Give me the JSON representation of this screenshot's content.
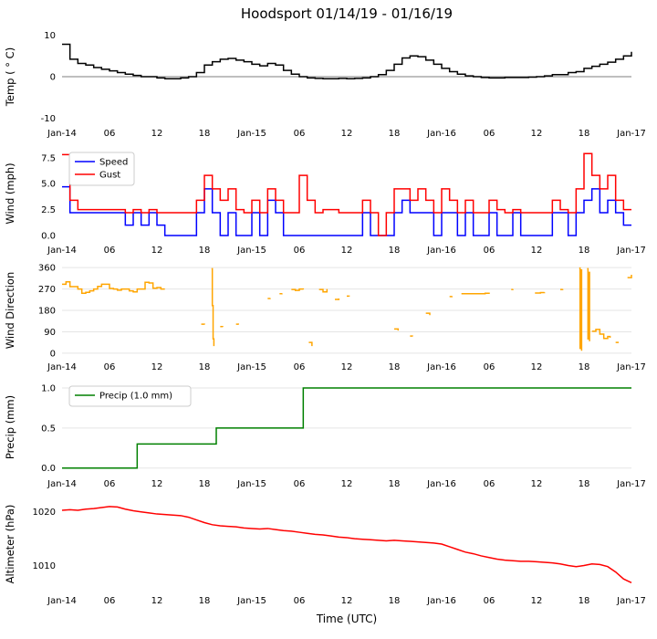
{
  "title": "Hoodsport 01/14/19 - 01/16/19",
  "xlabel": "Time (UTC)",
  "x_axis": {
    "range": [
      0,
      72
    ],
    "ticks": [
      0,
      6,
      12,
      18,
      24,
      30,
      36,
      42,
      48,
      54,
      60,
      66,
      72
    ],
    "labels": [
      "Jan-14",
      "06",
      "12",
      "18",
      "Jan-15",
      "06",
      "12",
      "18",
      "Jan-16",
      "06",
      "12",
      "18",
      "Jan-17"
    ]
  },
  "colors": {
    "temp": "#000000",
    "speed": "#0000ff",
    "gust": "#ff0000",
    "wind_direction": "#ffa500",
    "precip": "#008000",
    "altimeter": "#ff0000",
    "grid": "#e5e5e5",
    "zero_line": "#555555",
    "legend_border": "#cccccc"
  },
  "chart_data": [
    {
      "id": "temp",
      "type": "line",
      "ylabel": "Temp ( ° C)",
      "ylim": [
        -11,
        11
      ],
      "yticks": [
        -10,
        0,
        10
      ],
      "ytick_labels": [
        "-10",
        "0",
        "10"
      ],
      "zero_line": true,
      "series": [
        {
          "name": "Temp",
          "color": "#000000",
          "step": true,
          "x0": 0,
          "dx": 1,
          "y": [
            7.8,
            4.2,
            3.2,
            2.8,
            2.2,
            1.8,
            1.4,
            1.0,
            0.6,
            0.3,
            0,
            0,
            -0.3,
            -0.5,
            -0.5,
            -0.3,
            0,
            1.0,
            2.8,
            3.6,
            4.2,
            4.4,
            4.0,
            3.6,
            3.0,
            2.6,
            3.2,
            2.8,
            1.5,
            0.6,
            0,
            -0.3,
            -0.4,
            -0.5,
            -0.5,
            -0.4,
            -0.5,
            -0.4,
            -0.3,
            0,
            0.5,
            1.5,
            3.0,
            4.5,
            5.0,
            4.8,
            4.0,
            3.0,
            2.0,
            1.2,
            0.6,
            0.2,
            0,
            -0.2,
            -0.3,
            -0.3,
            -0.2,
            -0.2,
            -0.2,
            -0.1,
            0,
            0.2,
            0.5,
            0.5,
            1.0,
            1.2,
            2.0,
            2.5,
            3.0,
            3.5,
            4.2,
            5.0,
            6.0
          ]
        }
      ]
    },
    {
      "id": "wind",
      "type": "line",
      "ylabel": "Wind (mph)",
      "ylim": [
        -0.35,
        8.45
      ],
      "yticks": [
        0.0,
        2.5,
        5.0,
        7.5
      ],
      "ytick_labels": [
        "0.0",
        "2.5",
        "5.0",
        "7.5"
      ],
      "legend": true,
      "series": [
        {
          "name": "Speed",
          "color": "#0000ff",
          "step": true,
          "x0": 0,
          "dx": 1,
          "y": [
            4.7,
            2.2,
            2.2,
            2.2,
            2.2,
            2.2,
            2.2,
            2.2,
            1.0,
            2.2,
            1.0,
            2.2,
            1.0,
            0,
            0,
            0,
            0,
            2.2,
            4.5,
            2.2,
            0,
            2.2,
            0,
            0,
            2.2,
            0,
            3.4,
            2.2,
            0,
            0,
            0,
            0,
            0,
            0,
            0,
            0,
            0,
            0,
            2.2,
            0,
            0,
            0,
            2.2,
            3.4,
            2.2,
            2.2,
            2.2,
            0,
            2.2,
            2.2,
            0,
            2.2,
            0,
            0,
            2.2,
            0,
            0,
            2.2,
            0,
            0,
            0,
            0,
            2.2,
            2.2,
            0,
            2.2,
            3.4,
            4.5,
            2.2,
            3.4,
            2.2,
            1.0,
            1.0
          ]
        },
        {
          "name": "Gust",
          "color": "#ff0000",
          "step": true,
          "x0": 0,
          "dx": 1,
          "y": [
            7.8,
            3.4,
            2.5,
            2.5,
            2.5,
            2.5,
            2.5,
            2.5,
            2.2,
            2.5,
            2.2,
            2.5,
            2.2,
            2.2,
            2.2,
            2.2,
            2.2,
            3.4,
            5.8,
            4.5,
            3.4,
            4.5,
            2.5,
            2.2,
            3.4,
            2.2,
            4.5,
            3.4,
            2.2,
            2.2,
            5.8,
            3.4,
            2.2,
            2.5,
            2.5,
            2.2,
            2.2,
            2.2,
            3.4,
            2.2,
            0,
            2.2,
            4.5,
            4.5,
            3.4,
            4.5,
            3.4,
            2.2,
            4.5,
            3.4,
            2.2,
            3.4,
            2.2,
            2.2,
            3.4,
            2.5,
            2.2,
            2.5,
            2.2,
            2.2,
            2.2,
            2.2,
            3.4,
            2.5,
            2.2,
            4.5,
            7.9,
            5.8,
            4.5,
            5.8,
            3.4,
            2.5,
            2.5
          ]
        }
      ]
    },
    {
      "id": "wind-direction",
      "type": "line",
      "ylabel": "Wind Direction",
      "ylim": [
        -12,
        372
      ],
      "yticks": [
        0,
        90,
        180,
        270,
        360
      ],
      "ytick_labels": [
        "0",
        "90",
        "180",
        "270",
        "360"
      ],
      "grid": true,
      "series": [
        {
          "name": "Wind Direction",
          "color": "#ffa500",
          "step": true,
          "points": [
            [
              0,
              290
            ],
            [
              0.5,
              300
            ],
            [
              1,
              280
            ],
            [
              1.5,
              280
            ],
            [
              2,
              270
            ],
            [
              2.5,
              252
            ],
            [
              3,
              256
            ],
            [
              3.5,
              262
            ],
            [
              4,
              270
            ],
            [
              4.5,
              281
            ],
            [
              5,
              290
            ],
            [
              5.5,
              290
            ],
            [
              6,
              272
            ],
            [
              6.5,
              270
            ],
            [
              7,
              265
            ],
            [
              7.5,
              270
            ],
            [
              8,
              270
            ],
            [
              8.5,
              262
            ],
            [
              9,
              258
            ],
            [
              9.5,
              270
            ],
            [
              10,
              270
            ],
            [
              10.5,
              298
            ],
            [
              11,
              295
            ],
            [
              11.5,
              273
            ],
            [
              12,
              276
            ],
            [
              12.5,
              270
            ],
            [
              13,
              270
            ],
            null,
            [
              17.6,
              122
            ],
            [
              18,
              120
            ],
            null,
            [
              18.9,
              355
            ],
            [
              19,
              200
            ],
            [
              19.1,
              60
            ],
            [
              19.2,
              30
            ],
            null,
            [
              20,
              112
            ],
            [
              20.3,
              110
            ],
            null,
            [
              22,
              122
            ],
            [
              22.3,
              120
            ],
            null,
            [
              26,
              230
            ],
            [
              26.3,
              232
            ],
            null,
            [
              27.5,
              250
            ],
            [
              27.8,
              252
            ],
            null,
            [
              29,
              268
            ],
            [
              29.5,
              264
            ],
            [
              30,
              270
            ],
            [
              30.5,
              268
            ],
            null,
            [
              31.2,
              45
            ],
            [
              31.6,
              30
            ],
            null,
            [
              32.5,
              268
            ],
            [
              33,
              258
            ],
            [
              33.5,
              270
            ],
            null,
            [
              34.5,
              226
            ],
            [
              35,
              230
            ],
            null,
            [
              36,
              240
            ],
            [
              36.3,
              238
            ],
            null,
            [
              42,
              102
            ],
            [
              42.5,
              95
            ],
            null,
            [
              44,
              72
            ],
            [
              44.3,
              70
            ],
            null,
            [
              46,
              168
            ],
            [
              46.5,
              160
            ],
            null,
            [
              49,
              238
            ],
            [
              49.3,
              240
            ],
            null,
            [
              50.5,
              250
            ],
            [
              51.5,
              250
            ],
            [
              52.5,
              250
            ],
            [
              53.5,
              252
            ],
            [
              54,
              255
            ],
            null,
            [
              56.8,
              268
            ],
            [
              57,
              270
            ],
            null,
            [
              59.8,
              253
            ],
            [
              60.5,
              255
            ],
            [
              61,
              256
            ],
            null,
            [
              63,
              268
            ],
            [
              63.3,
              270
            ],
            null,
            [
              65.4,
              358
            ],
            [
              65.5,
              20
            ],
            [
              65.6,
              350
            ],
            [
              65.7,
              10
            ],
            null,
            [
              66.4,
              355
            ],
            [
              66.5,
              60
            ],
            [
              66.6,
              340
            ],
            [
              66.7,
              50
            ],
            null,
            [
              67,
              92
            ],
            [
              67.5,
              100
            ],
            [
              68,
              80
            ],
            [
              68.5,
              62
            ],
            [
              69,
              70
            ],
            [
              69.3,
              65
            ],
            null,
            [
              70,
              45
            ],
            [
              70.3,
              48
            ],
            null,
            [
              71.5,
              318
            ],
            [
              72,
              330
            ]
          ]
        }
      ]
    },
    {
      "id": "precip",
      "type": "line",
      "ylabel": "Precip (mm)",
      "ylim": [
        -0.06,
        1.08
      ],
      "yticks": [
        0.0,
        0.5,
        1.0
      ],
      "ytick_labels": [
        "0.0",
        "0.5",
        "1.0"
      ],
      "grid": true,
      "legend": true,
      "series": [
        {
          "name": "Precip (1.0 mm)",
          "color": "#008000",
          "step": false,
          "points": [
            [
              0,
              0
            ],
            [
              9.5,
              0
            ],
            [
              9.5,
              0.3
            ],
            [
              19.5,
              0.3
            ],
            [
              19.5,
              0.5
            ],
            [
              30.5,
              0.5
            ],
            [
              30.5,
              1.0
            ],
            [
              72,
              1.0
            ]
          ]
        }
      ]
    },
    {
      "id": "altimeter",
      "type": "line",
      "ylabel": "Altimeter (hPa)",
      "ylim": [
        1005.5,
        1022.5
      ],
      "yticks": [
        1010,
        1020
      ],
      "ytick_labels": [
        "1010",
        "1020"
      ],
      "series": [
        {
          "name": "Altimeter",
          "color": "#ff0000",
          "step": false,
          "x0": 0,
          "dx": 1,
          "y": [
            1020.3,
            1020.4,
            1020.3,
            1020.5,
            1020.6,
            1020.8,
            1021.0,
            1020.9,
            1020.5,
            1020.2,
            1020.0,
            1019.8,
            1019.6,
            1019.5,
            1019.4,
            1019.3,
            1019.0,
            1018.5,
            1018.0,
            1017.6,
            1017.4,
            1017.3,
            1017.2,
            1017.0,
            1016.9,
            1016.8,
            1016.9,
            1016.7,
            1016.5,
            1016.4,
            1016.2,
            1016.0,
            1015.8,
            1015.7,
            1015.5,
            1015.3,
            1015.2,
            1015.0,
            1014.9,
            1014.8,
            1014.7,
            1014.6,
            1014.7,
            1014.6,
            1014.5,
            1014.4,
            1014.3,
            1014.2,
            1014.0,
            1013.5,
            1013.0,
            1012.5,
            1012.2,
            1011.8,
            1011.5,
            1011.2,
            1011.0,
            1010.9,
            1010.8,
            1010.8,
            1010.7,
            1010.6,
            1010.5,
            1010.3,
            1010.0,
            1009.8,
            1010.0,
            1010.3,
            1010.2,
            1009.8,
            1008.8,
            1007.5,
            1006.8
          ]
        }
      ]
    }
  ]
}
